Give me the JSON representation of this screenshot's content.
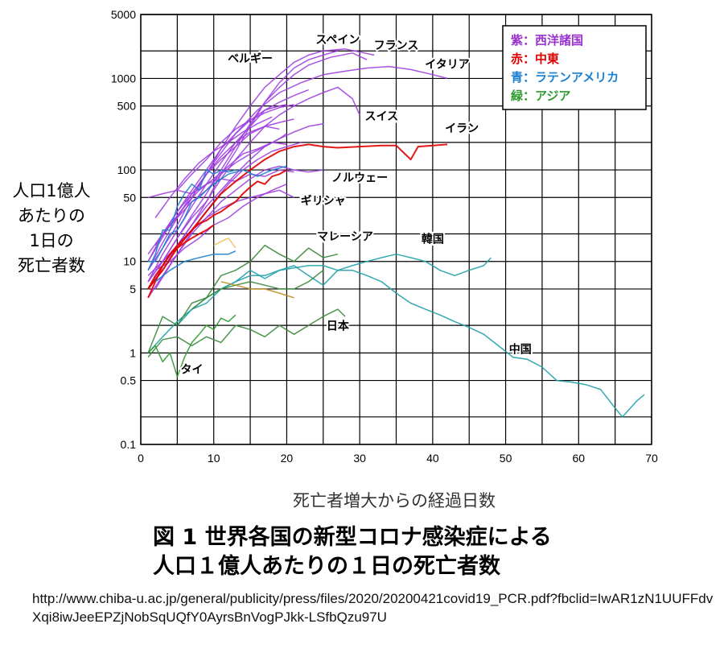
{
  "chart_data": {
    "type": "line",
    "xlabel": "死亡者増大からの経過日数",
    "ylabel": "人口1億人あたりの1日の死亡者数",
    "ylabel_lines": [
      "人口1億人",
      "あたりの",
      "1日の",
      "死亡者数"
    ],
    "title_lines": [
      "図 1 世界各国の新型コロナ感染症による",
      "人口１億人あたりの１日の死亡者数"
    ],
    "y_scale": "log",
    "ylim": [
      0.1,
      5000
    ],
    "xlim": [
      0,
      70
    ],
    "grid": true,
    "x_ticks": [
      0,
      10,
      20,
      30,
      40,
      50,
      60,
      70
    ],
    "y_ticks": [
      0.1,
      0.5,
      1,
      5,
      10,
      50,
      100,
      500,
      1000,
      5000
    ],
    "y_tick_labels": [
      "0.1",
      "0.5",
      "1",
      "5",
      "10",
      "50",
      "100",
      "500",
      "1000",
      "5000"
    ],
    "legend_position": "top-right",
    "legend": [
      {
        "label": "紫：西洋諸国",
        "color": "#9932cc"
      },
      {
        "label": "赤：中東",
        "color": "#e00000"
      },
      {
        "label": "青：ラテンアメリカ",
        "color": "#1a7fd0"
      },
      {
        "label": "緑：アジア",
        "color": "#2e9a2e"
      }
    ],
    "annotations": [
      {
        "text": "ベルギー",
        "x": 15,
        "y": 1500
      },
      {
        "text": "スペイン",
        "x": 27,
        "y": 2400
      },
      {
        "text": "フランス",
        "x": 35,
        "y": 2100
      },
      {
        "text": "イタリア",
        "x": 42,
        "y": 1300
      },
      {
        "text": "スイス",
        "x": 33,
        "y": 350
      },
      {
        "text": "イラン",
        "x": 44,
        "y": 260
      },
      {
        "text": "ノルウェー",
        "x": 30,
        "y": 75
      },
      {
        "text": "ギリシャ",
        "x": 25,
        "y": 42
      },
      {
        "text": "マレーシア",
        "x": 28,
        "y": 17
      },
      {
        "text": "韓国",
        "x": 40,
        "y": 16
      },
      {
        "text": "日本",
        "x": 27,
        "y": 1.8
      },
      {
        "text": "中国",
        "x": 52,
        "y": 1.0
      },
      {
        "text": "タイ",
        "x": 7,
        "y": 0.6
      }
    ],
    "series": [
      {
        "group": "western",
        "color": "#a040e0",
        "x": [
          1,
          3,
          5,
          7,
          9,
          11,
          13,
          15,
          17,
          19,
          21,
          23,
          25,
          27
        ],
        "y": [
          7,
          10,
          18,
          30,
          45,
          90,
          160,
          300,
          550,
          900,
          1300,
          1600,
          1800,
          2000
        ]
      },
      {
        "group": "western",
        "color": "#a040e0",
        "x": [
          1,
          3,
          5,
          7,
          9,
          11,
          13,
          15,
          17,
          19,
          21,
          23,
          25,
          28,
          32
        ],
        "y": [
          8,
          14,
          25,
          50,
          90,
          170,
          300,
          500,
          800,
          1100,
          1500,
          1800,
          2000,
          2100,
          1800
        ]
      },
      {
        "group": "western",
        "color": "#a040e0",
        "x": [
          1,
          3,
          5,
          7,
          9,
          11,
          13,
          15,
          17,
          19,
          21,
          23,
          26,
          29,
          31
        ],
        "y": [
          6,
          10,
          18,
          32,
          55,
          100,
          180,
          320,
          550,
          800,
          1100,
          1400,
          1700,
          1900,
          1600
        ]
      },
      {
        "group": "western",
        "color": "#a040e0",
        "x": [
          1,
          4,
          7,
          10,
          13,
          16,
          19,
          22,
          25,
          28,
          31,
          34,
          37,
          40,
          42
        ],
        "y": [
          10,
          25,
          50,
          120,
          250,
          450,
          700,
          900,
          1100,
          1200,
          1300,
          1350,
          1250,
          1100,
          1000
        ]
      },
      {
        "group": "western",
        "color": "#a040e0",
        "x": [
          1,
          3,
          5,
          7,
          9,
          11,
          13,
          15,
          17,
          19,
          21,
          23,
          25,
          27,
          29,
          30
        ],
        "y": [
          5,
          9,
          15,
          25,
          45,
          80,
          130,
          200,
          300,
          400,
          500,
          600,
          700,
          800,
          600,
          400
        ]
      },
      {
        "group": "western",
        "color": "#a040e0",
        "x": [
          1,
          3,
          5,
          7,
          9,
          11,
          13,
          15,
          17,
          19,
          21,
          23
        ],
        "y": [
          6,
          12,
          22,
          40,
          70,
          120,
          200,
          300,
          450,
          550,
          650,
          750
        ]
      },
      {
        "group": "western",
        "color": "#a040e0",
        "x": [
          1,
          3,
          5,
          7,
          9,
          11,
          13,
          15,
          17,
          19,
          21,
          23,
          25
        ],
        "y": [
          5,
          8,
          15,
          25,
          40,
          60,
          90,
          130,
          180,
          220,
          260,
          300,
          320
        ]
      },
      {
        "group": "western",
        "color": "#a040e0",
        "x": [
          1,
          3,
          5,
          7,
          9,
          11,
          13,
          15,
          17,
          19,
          21,
          23,
          25
        ],
        "y": [
          4,
          7,
          12,
          20,
          30,
          45,
          60,
          80,
          100,
          110,
          100,
          95,
          100
        ]
      },
      {
        "group": "western",
        "color": "#a040e0",
        "x": [
          1,
          3,
          5,
          7,
          9,
          11,
          13,
          15,
          17,
          19,
          20
        ],
        "y": [
          10,
          20,
          35,
          60,
          100,
          170,
          250,
          350,
          450,
          500,
          520
        ]
      },
      {
        "group": "western",
        "color": "#a040e0",
        "x": [
          1,
          3,
          5,
          7,
          9,
          11,
          13,
          15,
          17,
          19,
          21
        ],
        "y": [
          8,
          16,
          30,
          55,
          90,
          140,
          200,
          260,
          300,
          330,
          360
        ]
      },
      {
        "group": "western",
        "color": "#a040e0",
        "x": [
          2,
          4,
          6,
          8,
          10,
          12,
          14,
          16,
          18,
          20,
          22
        ],
        "y": [
          5,
          9,
          16,
          28,
          45,
          70,
          100,
          130,
          160,
          180,
          200
        ]
      },
      {
        "group": "western",
        "color": "#a040e0",
        "x": [
          1,
          3,
          5,
          7,
          9,
          11,
          13,
          15,
          17,
          19,
          21
        ],
        "y": [
          50,
          55,
          60,
          55,
          70,
          80,
          75,
          90,
          85,
          100,
          95
        ]
      },
      {
        "group": "western",
        "color": "#a040e0",
        "x": [
          2,
          4,
          6,
          8,
          10,
          12,
          14,
          16,
          18,
          20
        ],
        "y": [
          15,
          25,
          40,
          60,
          80,
          110,
          150,
          170,
          200,
          190
        ]
      },
      {
        "group": "western",
        "color": "#a040e0",
        "x": [
          1,
          3,
          5,
          7,
          9,
          11,
          13,
          15,
          17,
          19
        ],
        "y": [
          12,
          20,
          35,
          55,
          90,
          130,
          180,
          250,
          300,
          280
        ]
      },
      {
        "group": "western",
        "color": "#a040e0",
        "x": [
          2,
          4,
          6,
          8,
          10,
          12,
          14,
          16,
          18,
          20
        ],
        "y": [
          8,
          10,
          14,
          18,
          25,
          30,
          40,
          50,
          60,
          70
        ]
      },
      {
        "group": "western",
        "color": "#a040e0",
        "x": [
          1,
          3,
          5,
          7,
          9,
          11,
          13,
          15,
          17,
          19,
          21
        ],
        "y": [
          6,
          10,
          15,
          22,
          30,
          38,
          45,
          50,
          55,
          60,
          50
        ]
      },
      {
        "group": "western",
        "color": "#a040e0",
        "x": [
          3,
          5,
          7,
          9,
          11,
          13,
          15,
          17,
          19,
          20
        ],
        "y": [
          20,
          30,
          45,
          60,
          90,
          120,
          150,
          180,
          220,
          250
        ]
      },
      {
        "group": "western",
        "color": "#a040e0",
        "x": [
          5,
          7,
          9,
          11,
          13,
          15,
          17,
          19,
          21
        ],
        "y": [
          60,
          90,
          130,
          200,
          280,
          350,
          420,
          480,
          520
        ]
      },
      {
        "group": "western",
        "color": "#a040e0",
        "x": [
          2,
          4,
          6,
          8,
          10,
          12,
          14,
          16,
          18
        ],
        "y": [
          30,
          50,
          80,
          120,
          160,
          200,
          260,
          320,
          380
        ]
      },
      {
        "group": "middle_east",
        "color": "#e00000",
        "x": [
          1,
          3,
          5,
          7,
          9,
          11,
          13,
          15,
          17,
          19,
          21,
          23,
          25,
          27,
          30,
          33,
          35,
          37,
          38,
          40,
          42
        ],
        "y": [
          5,
          8,
          14,
          22,
          35,
          55,
          75,
          100,
          130,
          160,
          180,
          190,
          180,
          175,
          180,
          185,
          185,
          130,
          180,
          185,
          190
        ]
      },
      {
        "group": "middle_east",
        "color": "#e00000",
        "x": [
          1,
          2,
          3,
          4,
          5,
          6,
          7,
          8,
          9,
          10,
          11,
          12,
          13,
          14,
          15,
          16,
          17,
          18,
          19,
          20
        ],
        "y": [
          5,
          7,
          9,
          12,
          15,
          18,
          22,
          26,
          28,
          32,
          35,
          40,
          45,
          55,
          65,
          75,
          70,
          85,
          90,
          100
        ]
      },
      {
        "group": "middle_east",
        "color": "#e00000",
        "x": [
          1,
          2,
          3,
          4,
          5,
          6,
          7,
          8,
          9,
          10
        ],
        "y": [
          4,
          6,
          9,
          12,
          14,
          16,
          18,
          20,
          22,
          25
        ]
      },
      {
        "group": "latin_america",
        "color": "#1a7fd0",
        "x": [
          1,
          2,
          3,
          4,
          5,
          6,
          7,
          8,
          9,
          10,
          11,
          12,
          13
        ],
        "y": [
          8,
          12,
          22,
          22,
          40,
          55,
          70,
          60,
          100,
          90,
          100,
          95,
          100
        ]
      },
      {
        "group": "latin_america",
        "color": "#1a7fd0",
        "x": [
          10,
          12,
          14,
          16,
          18,
          20
        ],
        "y": [
          70,
          90,
          100,
          85,
          100,
          110
        ]
      },
      {
        "group": "latin_america",
        "color": "#1a7fd0",
        "x": [
          2,
          4,
          6,
          8,
          10,
          12,
          13
        ],
        "y": [
          6,
          8,
          10,
          11,
          12,
          12,
          13
        ]
      },
      {
        "group": "latin_america",
        "color": "#1a7fd0",
        "x": [
          1,
          2,
          3,
          4,
          5,
          6,
          7,
          8,
          9,
          10,
          11
        ],
        "y": [
          10,
          10,
          14,
          20,
          22,
          30,
          45,
          50,
          60,
          70,
          80
        ]
      },
      {
        "group": "asia_china",
        "color": "#1fa0a8",
        "x": [
          1,
          3,
          5,
          7,
          9,
          11,
          13,
          15,
          17,
          19,
          21,
          23,
          25,
          27,
          29,
          31,
          33,
          35,
          37,
          39,
          41,
          43,
          45,
          47,
          49,
          51,
          53,
          55,
          57,
          59,
          61,
          63,
          65,
          66,
          68,
          69
        ],
        "y": [
          1,
          1.5,
          2.2,
          3,
          4,
          5,
          6,
          7,
          7,
          8,
          8.5,
          9,
          9,
          8,
          8,
          7,
          6,
          4.5,
          3.5,
          3,
          2.6,
          2.2,
          1.9,
          1.6,
          1.2,
          0.9,
          0.85,
          0.7,
          0.5,
          0.48,
          0.45,
          0.4,
          0.25,
          0.2,
          0.3,
          0.35
        ]
      },
      {
        "group": "asia_korea",
        "color": "#1fa0a8",
        "x": [
          5,
          7,
          9,
          11,
          13,
          15,
          17,
          19,
          21,
          23,
          25,
          27,
          29,
          31,
          33,
          35,
          37,
          39,
          41,
          43,
          45,
          47,
          48
        ],
        "y": [
          2,
          3,
          3.5,
          5,
          6,
          8,
          6.5,
          8,
          9,
          7,
          5.5,
          8,
          9,
          10,
          11,
          12,
          11,
          10,
          8,
          7,
          8,
          9,
          11
        ]
      },
      {
        "group": "asia",
        "color": "#3a8a3a",
        "x": [
          1,
          3,
          5,
          7,
          9,
          11,
          13,
          15,
          17,
          19,
          21,
          23,
          25,
          27
        ],
        "y": [
          1,
          2.5,
          2,
          3.5,
          4,
          7,
          8,
          10,
          15,
          12,
          10,
          14,
          11,
          12
        ]
      },
      {
        "group": "asia",
        "color": "#3a8a3a",
        "x": [
          1,
          3,
          5,
          7,
          9,
          11,
          13,
          15,
          17,
          19,
          21,
          23,
          25,
          27,
          28
        ],
        "y": [
          0.9,
          1.4,
          1.5,
          1.2,
          1.5,
          1.3,
          2,
          1.8,
          1.5,
          2,
          1.6,
          2,
          2.5,
          3,
          2.5
        ]
      },
      {
        "group": "asia",
        "color": "#2e9a2e",
        "x": [
          1,
          2,
          3,
          4,
          5,
          6,
          7,
          8,
          9,
          10,
          11,
          12,
          13
        ],
        "y": [
          1,
          1.2,
          0.8,
          1,
          0.55,
          0.9,
          1.3,
          1.6,
          2,
          1.8,
          2.4,
          2.2,
          2.6
        ]
      },
      {
        "group": "asia",
        "color": "#3a8a3a",
        "x": [
          7,
          9,
          11,
          13,
          15,
          17,
          19,
          21,
          23,
          25
        ],
        "y": [
          3,
          4,
          5,
          5.5,
          6,
          5.5,
          5,
          5,
          6,
          8
        ]
      },
      {
        "group": "asia",
        "color": "#c09020",
        "x": [
          11,
          13,
          15,
          17,
          19,
          21
        ],
        "y": [
          6,
          5.5,
          5,
          5,
          4.5,
          4
        ]
      },
      {
        "group": "asia",
        "color": "#f0c060",
        "x": [
          10,
          12,
          13
        ],
        "y": [
          15,
          18,
          14
        ]
      }
    ]
  },
  "source_url": "http://www.chiba-u.ac.jp/general/publicity/press/files/2020/20200421covid19_PCR.pdf?fbclid=IwAR1zN1UUFFdvXqi8iwJeeEPZjNobSqUQfY0AyrsBnVogPJkk-LSfbQzu97U"
}
